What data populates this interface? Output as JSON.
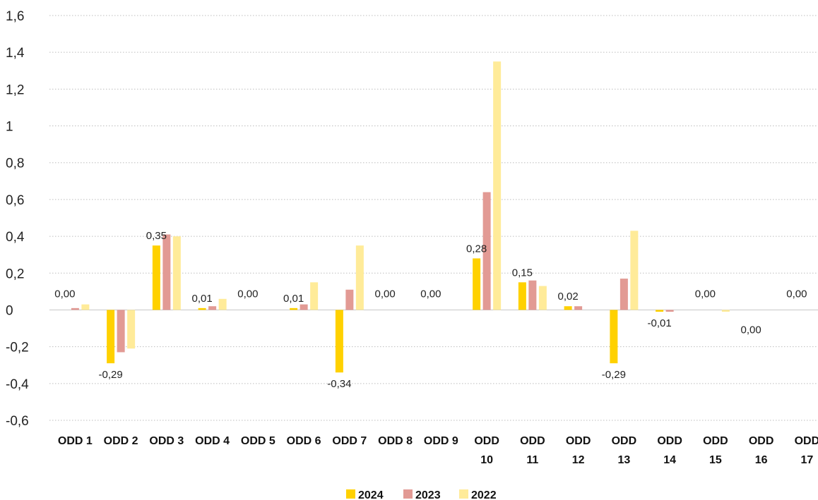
{
  "chart_data": {
    "type": "bar",
    "categories": [
      [
        "ODD 1"
      ],
      [
        "ODD 2"
      ],
      [
        "ODD 3"
      ],
      [
        "ODD 4"
      ],
      [
        "ODD 5"
      ],
      [
        "ODD 6"
      ],
      [
        "ODD 7"
      ],
      [
        "ODD 8"
      ],
      [
        "ODD 9"
      ],
      [
        "ODD",
        "10"
      ],
      [
        "ODD",
        "11"
      ],
      [
        "ODD",
        "12"
      ],
      [
        "ODD",
        "13"
      ],
      [
        "ODD",
        "14"
      ],
      [
        "ODD",
        "15"
      ],
      [
        "ODD",
        "16"
      ],
      [
        "ODD",
        "17"
      ]
    ],
    "series": [
      {
        "name": "2024",
        "color": "#FFD100",
        "values": [
          0.0,
          -0.29,
          0.35,
          0.01,
          0.0,
          0.01,
          -0.34,
          0.0,
          0.0,
          0.28,
          0.15,
          0.02,
          -0.29,
          -0.01,
          0.0,
          0.0,
          0.0
        ]
      },
      {
        "name": "2023",
        "color": "#E29A94",
        "values": [
          0.01,
          -0.23,
          0.41,
          0.02,
          0.0,
          0.03,
          0.11,
          0.0,
          0.0,
          0.64,
          0.16,
          0.02,
          0.17,
          -0.01,
          0.0,
          0.0,
          0.0
        ]
      },
      {
        "name": "2022",
        "color": "#FFEB99",
        "values": [
          0.03,
          -0.21,
          0.4,
          0.06,
          0.0,
          0.15,
          0.35,
          0.0,
          0.0,
          1.35,
          0.13,
          0.0,
          0.43,
          0.0,
          -0.01,
          0.0,
          0.0
        ]
      }
    ],
    "data_labels": [
      "0,00",
      "-0,29",
      "0,35",
      "0,01",
      "0,00",
      "0,01",
      "-0,34",
      "0,00",
      "0,00",
      "0,28",
      "0,15",
      "0,02",
      "-0,29",
      "-0,01",
      "0,00",
      "0,00",
      "0,00"
    ],
    "yticks": [
      1.6,
      1.4,
      1.2,
      1,
      0.8,
      0.6,
      0.4,
      0.2,
      0,
      -0.2,
      -0.4,
      -0.6
    ],
    "ytick_labels": [
      "1,6",
      "1,4",
      "1,2",
      "1",
      "0,8",
      "0,6",
      "0,4",
      "0,2",
      "0",
      "-0,2",
      "-0,4",
      "-0,6"
    ],
    "ylim": [
      -0.6,
      1.6
    ],
    "grid": true,
    "legend_position": "bottom-center",
    "title": "",
    "xlabel": "",
    "ylabel": ""
  }
}
